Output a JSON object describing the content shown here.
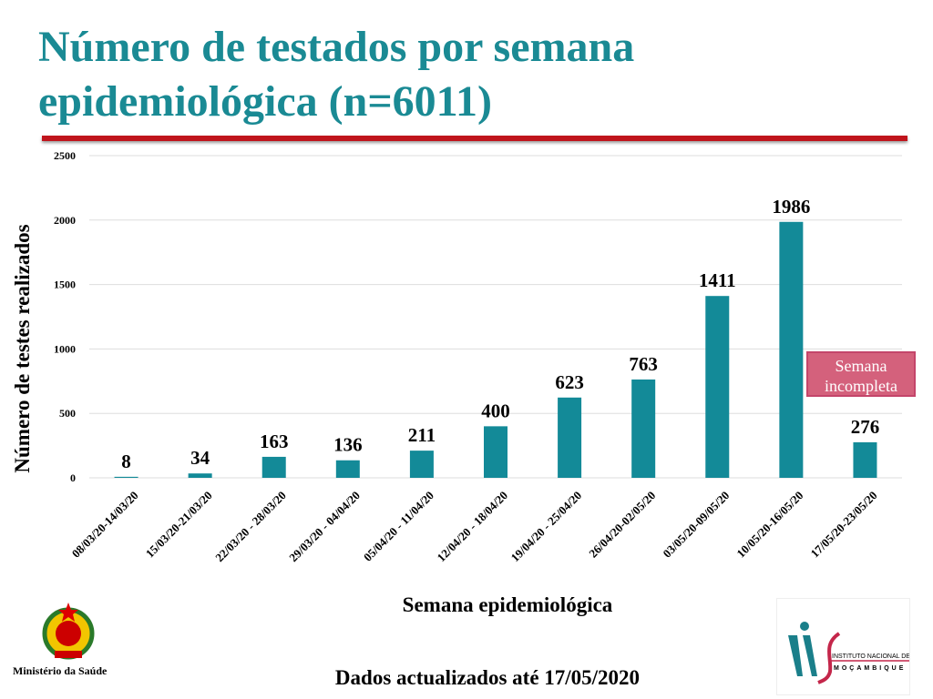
{
  "title": "Número de testados por semana epidemiológica (n=6011)",
  "footer": "Dados actualizados até 17/05/2020",
  "annotation": "Semana incompleta",
  "ministry": "Ministério da Saúde",
  "ins_logo": {
    "line1": "INSTITUTO NACIONAL DE SAÚDE",
    "line2": "MOÇAMBIQUE"
  },
  "colors": {
    "bar": "#138a98",
    "title": "#1a8a94",
    "rule": "#c0141c",
    "annotation": "#d4617c"
  },
  "chart_data": {
    "type": "bar",
    "xlabel": "Semana epidemiológica",
    "ylabel": "Número de testes realizados",
    "ylim": [
      0,
      2500
    ],
    "yticks": [
      0,
      500,
      1000,
      1500,
      2000,
      2500
    ],
    "grid": true,
    "categories": [
      "08/03/20-14/03/20",
      "15/03/20-21/03/20",
      "22/03/20 - 28/03/20",
      "29/03/20 - 04/04/20",
      "05/04/20 - 11/04/20",
      "12/04/20 - 18/04/20",
      "19/04/20 - 25/04/20",
      "26/04/20-02/05/20",
      "03/05/20-09/05/20",
      "10/05/20-16/05/20",
      "17/05/20-23/05/20"
    ],
    "values": [
      8,
      34,
      163,
      136,
      211,
      400,
      623,
      763,
      1411,
      1986,
      276
    ]
  }
}
